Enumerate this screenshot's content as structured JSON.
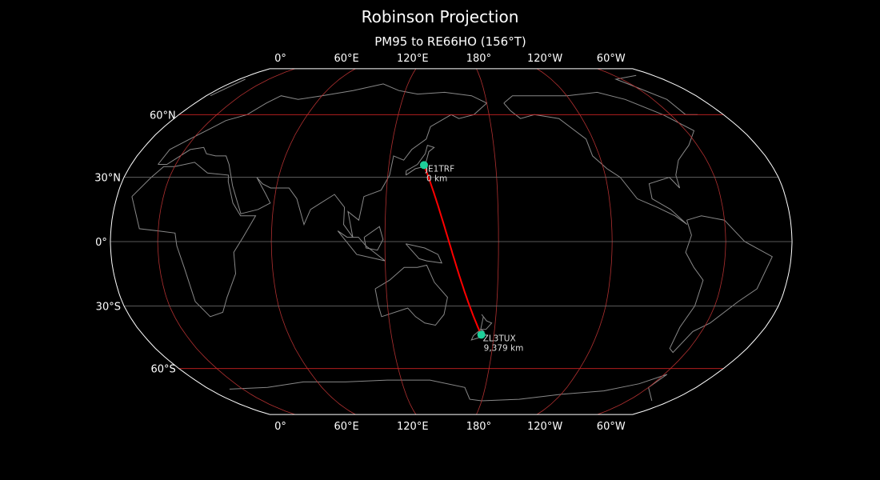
{
  "title": "Robinson Projection",
  "subtitle": "PM95 to RE66HO (156°T)",
  "projection": "robinson",
  "central_longitude": 155,
  "longitude_ticks": [
    {
      "lon": 0,
      "label": "0°"
    },
    {
      "lon": 60,
      "label": "60°E"
    },
    {
      "lon": 120,
      "label": "120°E"
    },
    {
      "lon": 180,
      "label": "180°"
    },
    {
      "lon": -120,
      "label": "120°W"
    },
    {
      "lon": -60,
      "label": "60°W"
    }
  ],
  "latitude_ticks": [
    {
      "lat": 60,
      "label": "60°N"
    },
    {
      "lat": 30,
      "label": "30°N"
    },
    {
      "lat": 0,
      "label": "0°"
    },
    {
      "lat": -30,
      "label": "30°S"
    },
    {
      "lat": -60,
      "label": "60°S"
    }
  ],
  "colors": {
    "background": "#000000",
    "coastline": "#888888",
    "meridian": "#b03030",
    "parallel_60": "#cc2222",
    "parallel": "#777777",
    "path": "#ff0000",
    "marker": "#1ecf9a"
  },
  "stations": [
    {
      "call": "JE1TRF",
      "distance": "0 km",
      "lat": 35.7,
      "lon": 139.7
    },
    {
      "call": "ZL3TUX",
      "distance": "9,379 km",
      "lat": -43.5,
      "lon": 172.6
    }
  ]
}
